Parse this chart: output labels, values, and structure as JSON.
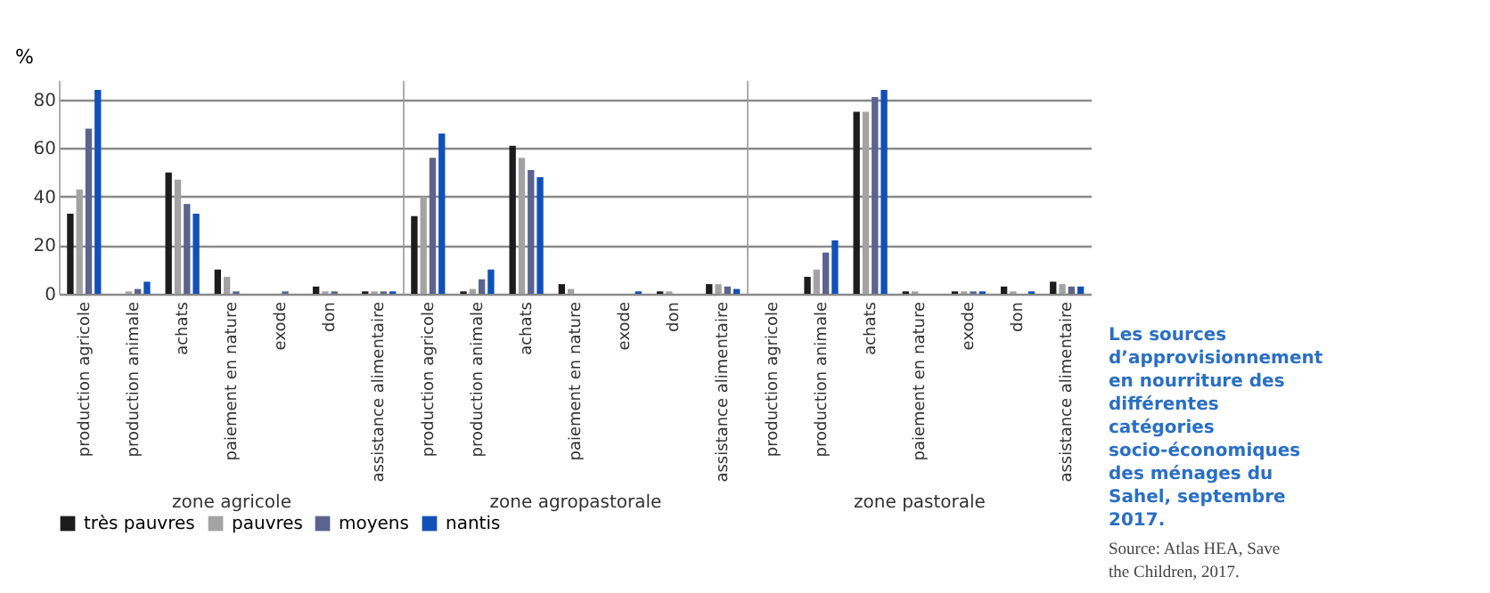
{
  "chart_data": [
    {
      "type": "bar",
      "xlabel": "zone agricole",
      "ylabel": "%",
      "categories": [
        "production agricole",
        "production animale",
        "achats",
        "paiement en nature",
        "exode",
        "don",
        "assistance alimentaire"
      ],
      "ylim": [
        0,
        88
      ],
      "yticks": [
        0,
        20,
        40,
        60,
        80
      ],
      "grid": "y",
      "legend": false,
      "series": [
        {
          "color": "#1c1c1c",
          "values": [
            33,
            0,
            50,
            10,
            0,
            3,
            1
          ]
        },
        {
          "color": "#a3a3a3",
          "values": [
            43,
            1,
            47,
            7,
            0,
            1,
            1
          ]
        },
        {
          "color": "#5b648e",
          "values": [
            68,
            2,
            37,
            1,
            1,
            1,
            1
          ]
        },
        {
          "color": "#1150b8",
          "values": [
            84,
            5,
            33,
            0,
            0,
            0,
            1
          ]
        }
      ]
    },
    {
      "type": "bar",
      "xlabel": "zone agropastorale",
      "categories": [
        "production agricole",
        "production animale",
        "achats",
        "paiement en nature",
        "exode",
        "don",
        "assistance alimentaire"
      ],
      "ylim": [
        0,
        88
      ],
      "yticks": [
        0,
        20,
        40,
        60,
        80
      ],
      "grid": "y",
      "tick_labels": "x",
      "legend": "bottom",
      "series": [
        {
          "name": "très pauvres",
          "color": "#1c1c1c",
          "values": [
            32,
            1,
            61,
            4,
            0,
            1,
            4
          ]
        },
        {
          "name": "pauvres",
          "color": "#a3a3a3",
          "values": [
            40,
            2,
            56,
            2,
            0,
            1,
            4
          ]
        },
        {
          "name": "moyens",
          "color": "#5b648e",
          "values": [
            56,
            6,
            51,
            0,
            0,
            0,
            3
          ]
        },
        {
          "name": "nantis",
          "color": "#1150b8",
          "values": [
            66,
            10,
            48,
            0,
            1,
            0,
            2
          ]
        }
      ]
    },
    {
      "type": "bar",
      "xlabel": "zone pastorale",
      "categories": [
        "production agricole",
        "production animale",
        "achats",
        "paiement en nature",
        "exode",
        "don",
        "assistance alimentaire"
      ],
      "ylim": [
        0,
        88
      ],
      "yticks": [
        0,
        20,
        40,
        60,
        80
      ],
      "grid": "y",
      "tick_labels": "x",
      "legend": false,
      "series": [
        {
          "color": "#1c1c1c",
          "values": [
            0,
            7,
            75,
            1,
            1,
            3,
            5
          ]
        },
        {
          "color": "#a3a3a3",
          "values": [
            0,
            10,
            75,
            1,
            1,
            1,
            4
          ]
        },
        {
          "color": "#5b648e",
          "values": [
            0,
            17,
            81,
            0,
            1,
            0,
            3
          ]
        },
        {
          "color": "#1150b8",
          "values": [
            0,
            22,
            84,
            0,
            1,
            1,
            3
          ]
        }
      ]
    },
    {
      "type": "other",
      "title": "Les sources d’approvisionnement en nourriture des différentes catégories socio-économiques des ménages du Sahel, septembre 2017.",
      "annotations": [
        "Source: Atlas HEA, Save the Children, 2017."
      ]
    }
  ]
}
